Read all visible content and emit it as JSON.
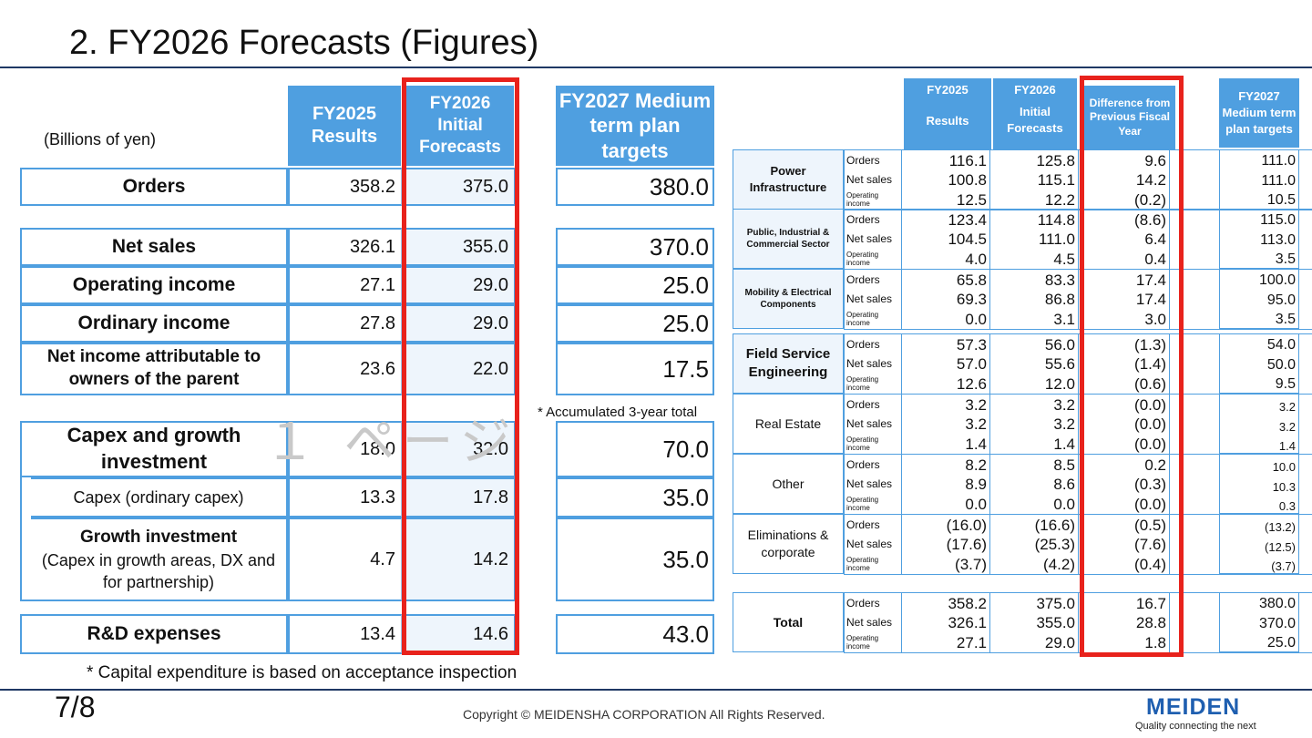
{
  "title": "2. FY2026 Forecasts (Figures)",
  "unit": "(Billions of yen)",
  "left_headers": {
    "fy2025": "FY2025 Results",
    "fy2026": "FY2026 Initial Forecasts",
    "fy2027": "FY2027 Medium term plan targets"
  },
  "left_rows": [
    {
      "label": "Orders",
      "fy2025": "358.2",
      "fy2026": "375.0",
      "target": "380.0"
    },
    {
      "label": "Net sales",
      "fy2025": "326.1",
      "fy2026": "355.0",
      "target": "370.0"
    },
    {
      "label": "Operating income",
      "fy2025": "27.1",
      "fy2026": "29.0",
      "target": "25.0"
    },
    {
      "label": "Ordinary income",
      "fy2025": "27.8",
      "fy2026": "29.0",
      "target": "25.0"
    },
    {
      "label": "Net income attributable to owners of the parent",
      "fy2025": "23.6",
      "fy2026": "22.0",
      "target": "17.5"
    },
    {
      "label": "Capex and growth investment",
      "fy2025": "18.0",
      "fy2026": "32.0",
      "target": "70.0"
    },
    {
      "label": "Capex (ordinary capex)",
      "fy2025": "13.3",
      "fy2026": "17.8",
      "target": "35.0"
    },
    {
      "label": "Growth investment",
      "sublabel": "(Capex in growth areas, DX and for partnership)",
      "fy2025": "4.7",
      "fy2026": "14.2",
      "target": "35.0"
    },
    {
      "label": "R&D expenses",
      "fy2025": "13.4",
      "fy2026": "14.6",
      "target": "43.0"
    }
  ],
  "accumulated_note": "* Accumulated 3-year total",
  "watermark": "１ ページ",
  "right_headers": {
    "fy2025_top": "FY2025",
    "fy2025_bottom": "Results",
    "fy2026_top": "FY2026",
    "fy2026_bottom": "Initial Forecasts",
    "diff": "Difference from Previous Fiscal Year",
    "fy2027": "FY2027 Medium term plan targets"
  },
  "metric_labels": [
    "Orders",
    "Net sales",
    "Operating income"
  ],
  "segments": [
    {
      "name": "Power Infrastructure",
      "rows": [
        [
          "116.1",
          "125.8",
          "9.6",
          "111.0"
        ],
        [
          "100.8",
          "115.1",
          "14.2",
          "111.0"
        ],
        [
          "12.5",
          "12.2",
          "(0.2)",
          "10.5"
        ]
      ]
    },
    {
      "name": "Public, Industrial & Commercial Sector",
      "rows": [
        [
          "123.4",
          "114.8",
          "(8.6)",
          "115.0"
        ],
        [
          "104.5",
          "111.0",
          "6.4",
          "113.0"
        ],
        [
          "4.0",
          "4.5",
          "0.4",
          "3.5"
        ]
      ]
    },
    {
      "name": "Mobility & Electrical Components",
      "rows": [
        [
          "65.8",
          "83.3",
          "17.4",
          "100.0"
        ],
        [
          "69.3",
          "86.8",
          "17.4",
          "95.0"
        ],
        [
          "0.0",
          "3.1",
          "3.0",
          "3.5"
        ]
      ]
    },
    {
      "name": "Field Service Engineering",
      "rows": [
        [
          "57.3",
          "56.0",
          "(1.3)",
          "54.0"
        ],
        [
          "57.0",
          "55.6",
          "(1.4)",
          "50.0"
        ],
        [
          "12.6",
          "12.0",
          "(0.6)",
          "9.5"
        ]
      ]
    },
    {
      "name": "Real Estate",
      "rows": [
        [
          "3.2",
          "3.2",
          "(0.0)",
          "3.2"
        ],
        [
          "3.2",
          "3.2",
          "(0.0)",
          "3.2"
        ],
        [
          "1.4",
          "1.4",
          "(0.0)",
          "1.4"
        ]
      ]
    },
    {
      "name": "Other",
      "rows": [
        [
          "8.2",
          "8.5",
          "0.2",
          "10.0"
        ],
        [
          "8.9",
          "8.6",
          "(0.3)",
          "10.3"
        ],
        [
          "0.0",
          "0.0",
          "(0.0)",
          "0.3"
        ]
      ]
    },
    {
      "name": "Eliminations & corporate",
      "rows": [
        [
          "(16.0)",
          "(16.6)",
          "(0.5)",
          "(13.2)"
        ],
        [
          "(17.6)",
          "(25.3)",
          "(7.6)",
          "(12.5)"
        ],
        [
          "(3.7)",
          "(4.2)",
          "(0.4)",
          "(3.7)"
        ]
      ]
    }
  ],
  "total": {
    "name": "Total",
    "rows": [
      [
        "358.2",
        "375.0",
        "16.7",
        "380.0"
      ],
      [
        "326.1",
        "355.0",
        "28.8",
        "370.0"
      ],
      [
        "27.1",
        "29.0",
        "1.8",
        "25.0"
      ]
    ]
  },
  "footnote": "* Capital expenditure is based on acceptance inspection",
  "page_number": "7/8",
  "copyright": "Copyright © MEIDENSHA CORPORATION All Rights Reserved.",
  "logo": "MEIDEN",
  "tagline": "Quality connecting the next"
}
